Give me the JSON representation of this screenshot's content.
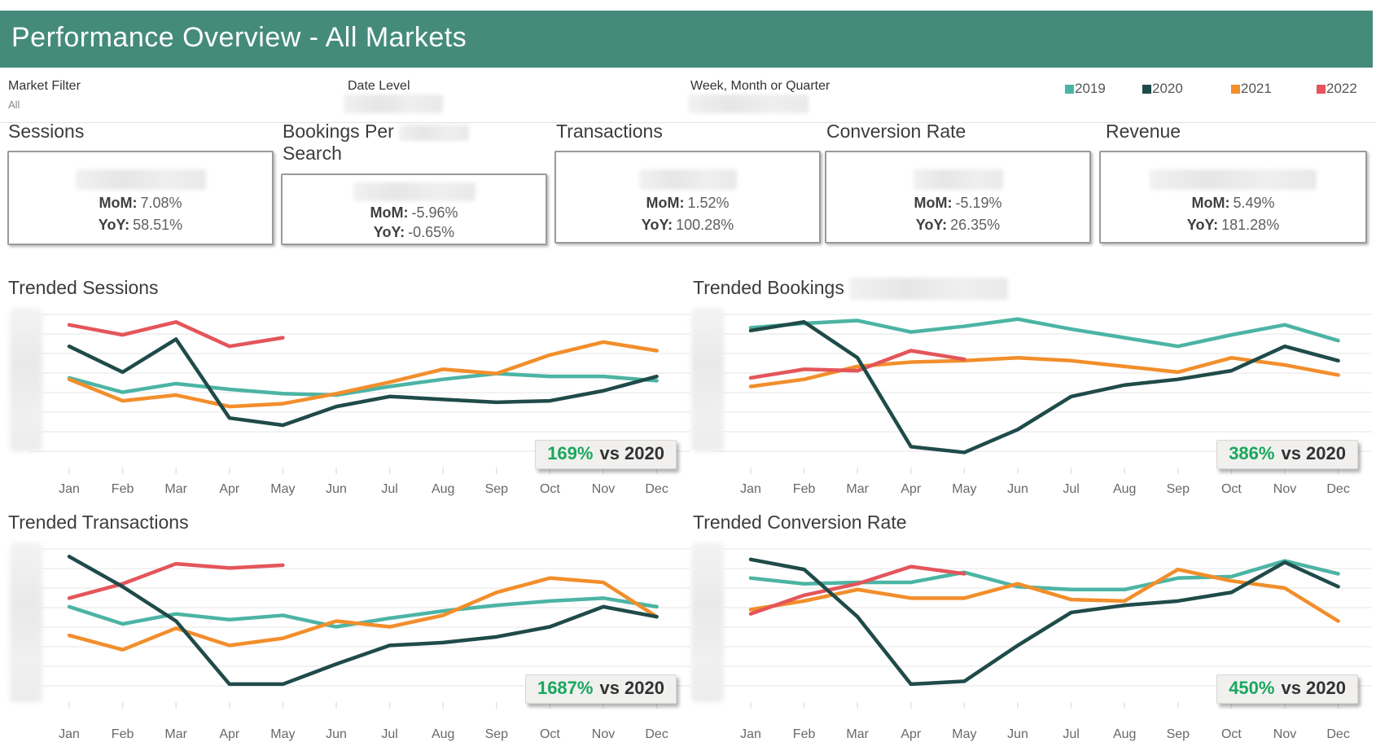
{
  "header": {
    "title": "Performance Overview - All Markets",
    "bar_color": "#458b7b"
  },
  "filter_bar": {
    "market_filter": {
      "label": "Market Filter",
      "value": "All"
    },
    "date_level": {
      "label": "Date Level",
      "value_redacted": true
    },
    "week_month_quarter": {
      "label": "Week, Month or Quarter",
      "value_redacted": true
    }
  },
  "legend": [
    {
      "label": "2019",
      "color": "#4cb4a4"
    },
    {
      "label": "2020",
      "color": "#1f4b49"
    },
    {
      "label": "2021",
      "color": "#f28e2b"
    },
    {
      "label": "2022",
      "color": "#e4555a"
    }
  ],
  "kpis": [
    {
      "title": "Sessions",
      "value_redacted": true,
      "mom_label": "MoM:",
      "mom_value": "7.08%",
      "yoy_label": "YoY:",
      "yoy_value": "58.51%"
    },
    {
      "title_line1": "Bookings Per",
      "title_redacted_word": true,
      "title_line2": "Search",
      "value_redacted": true,
      "mom_label": "MoM:",
      "mom_value": "-5.96%",
      "yoy_label": "YoY:",
      "yoy_value": "-0.65%"
    },
    {
      "title": "Transactions",
      "value_redacted": true,
      "mom_label": "MoM:",
      "mom_value": "1.52%",
      "yoy_label": "YoY:",
      "yoy_value": "100.28%"
    },
    {
      "title": "Conversion Rate",
      "value_redacted": true,
      "mom_label": "MoM:",
      "mom_value": "-5.19%",
      "yoy_label": "YoY:",
      "yoy_value": "26.35%"
    },
    {
      "title": "Revenue",
      "value_redacted": true,
      "mom_label": "MoM:",
      "mom_value": "5.49%",
      "yoy_label": "YoY:",
      "yoy_value": "181.28%"
    }
  ],
  "months": [
    "Jan",
    "Feb",
    "Mar",
    "Apr",
    "May",
    "Jun",
    "Jul",
    "Aug",
    "Sep",
    "Oct",
    "Nov",
    "Dec"
  ],
  "badge_value_color": "#18a75c",
  "chart_data": [
    {
      "type": "line",
      "title": "Trended Sessions",
      "xlabel": "",
      "ylabel": "",
      "x_tick_labels": [
        "Jan",
        "Feb",
        "Mar",
        "Apr",
        "May",
        "Jun",
        "Jul",
        "Aug",
        "Sep",
        "Oct",
        "Nov",
        "Dec"
      ],
      "y_axis_labels_redacted": true,
      "y_scale": "relative index 0-100 (axis labels blurred in source)",
      "grid": true,
      "series": [
        {
          "name": "2019",
          "color": "#4cb4a4",
          "values": [
            58,
            48,
            54,
            50,
            47,
            46,
            52,
            57,
            61,
            59,
            59,
            56
          ]
        },
        {
          "name": "2020",
          "color": "#1f4b49",
          "values": [
            80,
            62,
            85,
            30,
            25,
            38,
            45,
            43,
            41,
            42,
            49,
            59
          ]
        },
        {
          "name": "2021",
          "color": "#f28e2b",
          "values": [
            57,
            42,
            46,
            38,
            40,
            47,
            55,
            64,
            61,
            74,
            83,
            77
          ]
        },
        {
          "name": "2022",
          "color": "#e4555a",
          "values": [
            95,
            88,
            97,
            80,
            86
          ]
        }
      ],
      "badge": {
        "value": "169%",
        "label": "vs 2020"
      }
    },
    {
      "type": "line",
      "title": "Trended Bookings",
      "title_suffix_redacted": true,
      "xlabel": "",
      "ylabel": "",
      "x_tick_labels": [
        "Jan",
        "Feb",
        "Mar",
        "Apr",
        "May",
        "Jun",
        "Jul",
        "Aug",
        "Sep",
        "Oct",
        "Nov",
        "Dec"
      ],
      "y_axis_labels_redacted": true,
      "y_scale": "relative index 0-100 (axis labels blurred in source)",
      "grid": true,
      "series": [
        {
          "name": "2019",
          "color": "#4cb4a4",
          "values": [
            93,
            96,
            98,
            90,
            94,
            99,
            92,
            86,
            80,
            88,
            95,
            84
          ]
        },
        {
          "name": "2020",
          "color": "#1f4b49",
          "values": [
            91,
            97,
            72,
            10,
            6,
            22,
            45,
            53,
            57,
            63,
            80,
            70
          ]
        },
        {
          "name": "2021",
          "color": "#f28e2b",
          "values": [
            52,
            57,
            66,
            69,
            70,
            72,
            70,
            66,
            62,
            72,
            67,
            60
          ]
        },
        {
          "name": "2022",
          "color": "#e4555a",
          "values": [
            58,
            64,
            63,
            77,
            71
          ]
        }
      ],
      "badge": {
        "value": "386%",
        "label": "vs 2020"
      }
    },
    {
      "type": "line",
      "title": "Trended Transactions",
      "xlabel": "",
      "ylabel": "",
      "x_tick_labels": [
        "Jan",
        "Feb",
        "Mar",
        "Apr",
        "May",
        "Jun",
        "Jul",
        "Aug",
        "Sep",
        "Oct",
        "Nov",
        "Dec"
      ],
      "y_axis_labels_redacted": true,
      "y_scale": "relative index 0-100 (axis labels blurred in source)",
      "grid": true,
      "series": [
        {
          "name": "2019",
          "color": "#4cb4a4",
          "values": [
            62,
            50,
            57,
            53,
            56,
            48,
            54,
            59,
            63,
            66,
            68,
            62
          ]
        },
        {
          "name": "2020",
          "color": "#1f4b49",
          "values": [
            97,
            76,
            52,
            8,
            8,
            22,
            35,
            37,
            41,
            48,
            62,
            55
          ]
        },
        {
          "name": "2021",
          "color": "#f28e2b",
          "values": [
            42,
            32,
            47,
            35,
            40,
            52,
            48,
            56,
            72,
            82,
            79,
            55
          ]
        },
        {
          "name": "2022",
          "color": "#e4555a",
          "values": [
            68,
            78,
            92,
            89,
            91
          ]
        }
      ],
      "badge": {
        "value": "1687%",
        "label": "vs 2020"
      }
    },
    {
      "type": "line",
      "title": "Trended Conversion Rate",
      "xlabel": "",
      "ylabel": "",
      "x_tick_labels": [
        "Jan",
        "Feb",
        "Mar",
        "Apr",
        "May",
        "Jun",
        "Jul",
        "Aug",
        "Sep",
        "Oct",
        "Nov",
        "Dec"
      ],
      "y_axis_labels_redacted": true,
      "y_scale": "relative index 0-100 (axis labels blurred in source)",
      "grid": true,
      "series": [
        {
          "name": "2019",
          "color": "#4cb4a4",
          "values": [
            82,
            78,
            79,
            79,
            86,
            76,
            74,
            74,
            82,
            83,
            94,
            85
          ]
        },
        {
          "name": "2020",
          "color": "#1f4b49",
          "values": [
            95,
            88,
            55,
            8,
            10,
            35,
            58,
            63,
            66,
            72,
            93,
            76
          ]
        },
        {
          "name": "2021",
          "color": "#f28e2b",
          "values": [
            60,
            66,
            74,
            68,
            68,
            78,
            67,
            66,
            88,
            80,
            75,
            52
          ]
        },
        {
          "name": "2022",
          "color": "#e4555a",
          "values": [
            57,
            70,
            78,
            90,
            85
          ]
        }
      ],
      "badge": {
        "value": "450%",
        "label": "vs 2020"
      }
    }
  ]
}
